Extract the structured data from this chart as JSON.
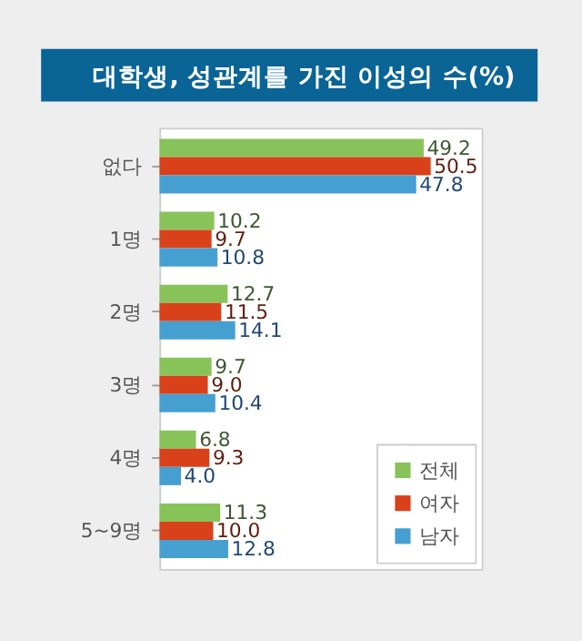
{
  "chart_data": {
    "type": "bar",
    "orientation": "horizontal",
    "title": "대학생, 성관계를 가진 이성의 수(%)",
    "categories": [
      "없다",
      "1명",
      "2명",
      "3명",
      "4명",
      "5~9명"
    ],
    "series": [
      {
        "name": "전체",
        "color": "#88c35a",
        "values": [
          49.2,
          10.2,
          12.7,
          9.7,
          6.8,
          11.3
        ],
        "value_labels": [
          "49.2",
          "10.2",
          "12.7",
          "9.7",
          "6.8",
          "11.3"
        ]
      },
      {
        "name": "여자",
        "color": "#d9411b",
        "values": [
          50.5,
          9.7,
          11.5,
          9.0,
          9.3,
          10.0
        ],
        "value_labels": [
          "50.5",
          "9.7",
          "11.5",
          "9.0",
          "9.3",
          "10.0"
        ]
      },
      {
        "name": "남자",
        "color": "#45a0d1",
        "values": [
          47.8,
          10.8,
          14.1,
          10.4,
          4.0,
          12.8
        ],
        "value_labels": [
          "47.8",
          "10.8",
          "14.1",
          "10.4",
          "4.0",
          "12.8"
        ]
      }
    ],
    "xlim": [
      0,
      60
    ],
    "legend": "bottom right"
  }
}
